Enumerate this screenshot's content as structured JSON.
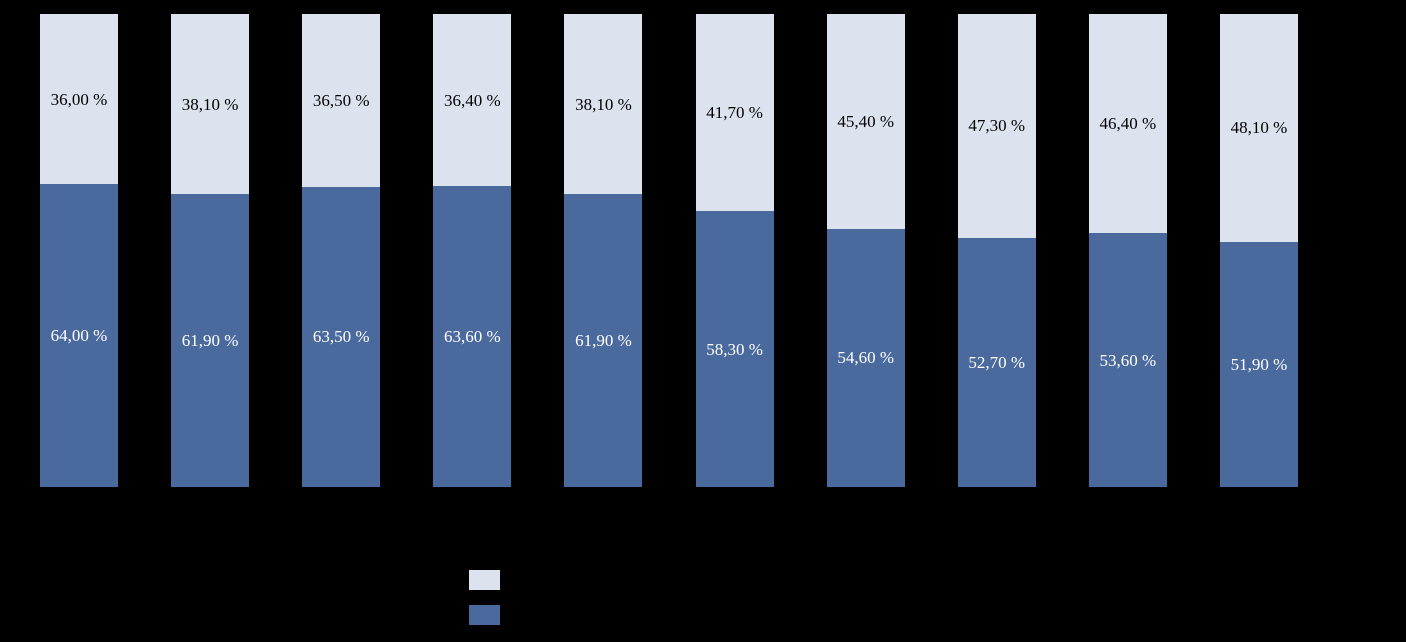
{
  "background_color": "#000000",
  "chart_data": {
    "type": "bar",
    "stacked": true,
    "percent_stacked": true,
    "unit": "%",
    "ylim": [
      0,
      100
    ],
    "grid": false,
    "axis_labels_visible": false,
    "legend_position": "bottom-center",
    "legend_labels_visible": false,
    "num_bars": 10,
    "series": [
      {
        "name": "top-light-segment",
        "color": "#dce3ef",
        "label_color": "#000000",
        "values": [
          36.0,
          38.1,
          36.5,
          36.4,
          38.1,
          41.7,
          45.4,
          47.3,
          46.4,
          48.1
        ],
        "labels": [
          "36,00 %",
          "38,10 %",
          "36,50 %",
          "36,40 %",
          "38,10 %",
          "41,70 %",
          "45,40 %",
          "47,30 %",
          "46,40 %",
          "48,10 %"
        ]
      },
      {
        "name": "bottom-dark-segment",
        "color": "#4a6a9d",
        "label_color": "#ffffff",
        "values": [
          64.0,
          61.9,
          63.5,
          63.6,
          61.9,
          58.3,
          54.6,
          52.7,
          53.6,
          51.9
        ],
        "labels": [
          "64,00 %",
          "61,90 %",
          "63,50 %",
          "63,60 %",
          "61,90 %",
          "58,30 %",
          "54,60 %",
          "52,70 %",
          "53,60 %",
          "51,90 %"
        ]
      }
    ]
  }
}
